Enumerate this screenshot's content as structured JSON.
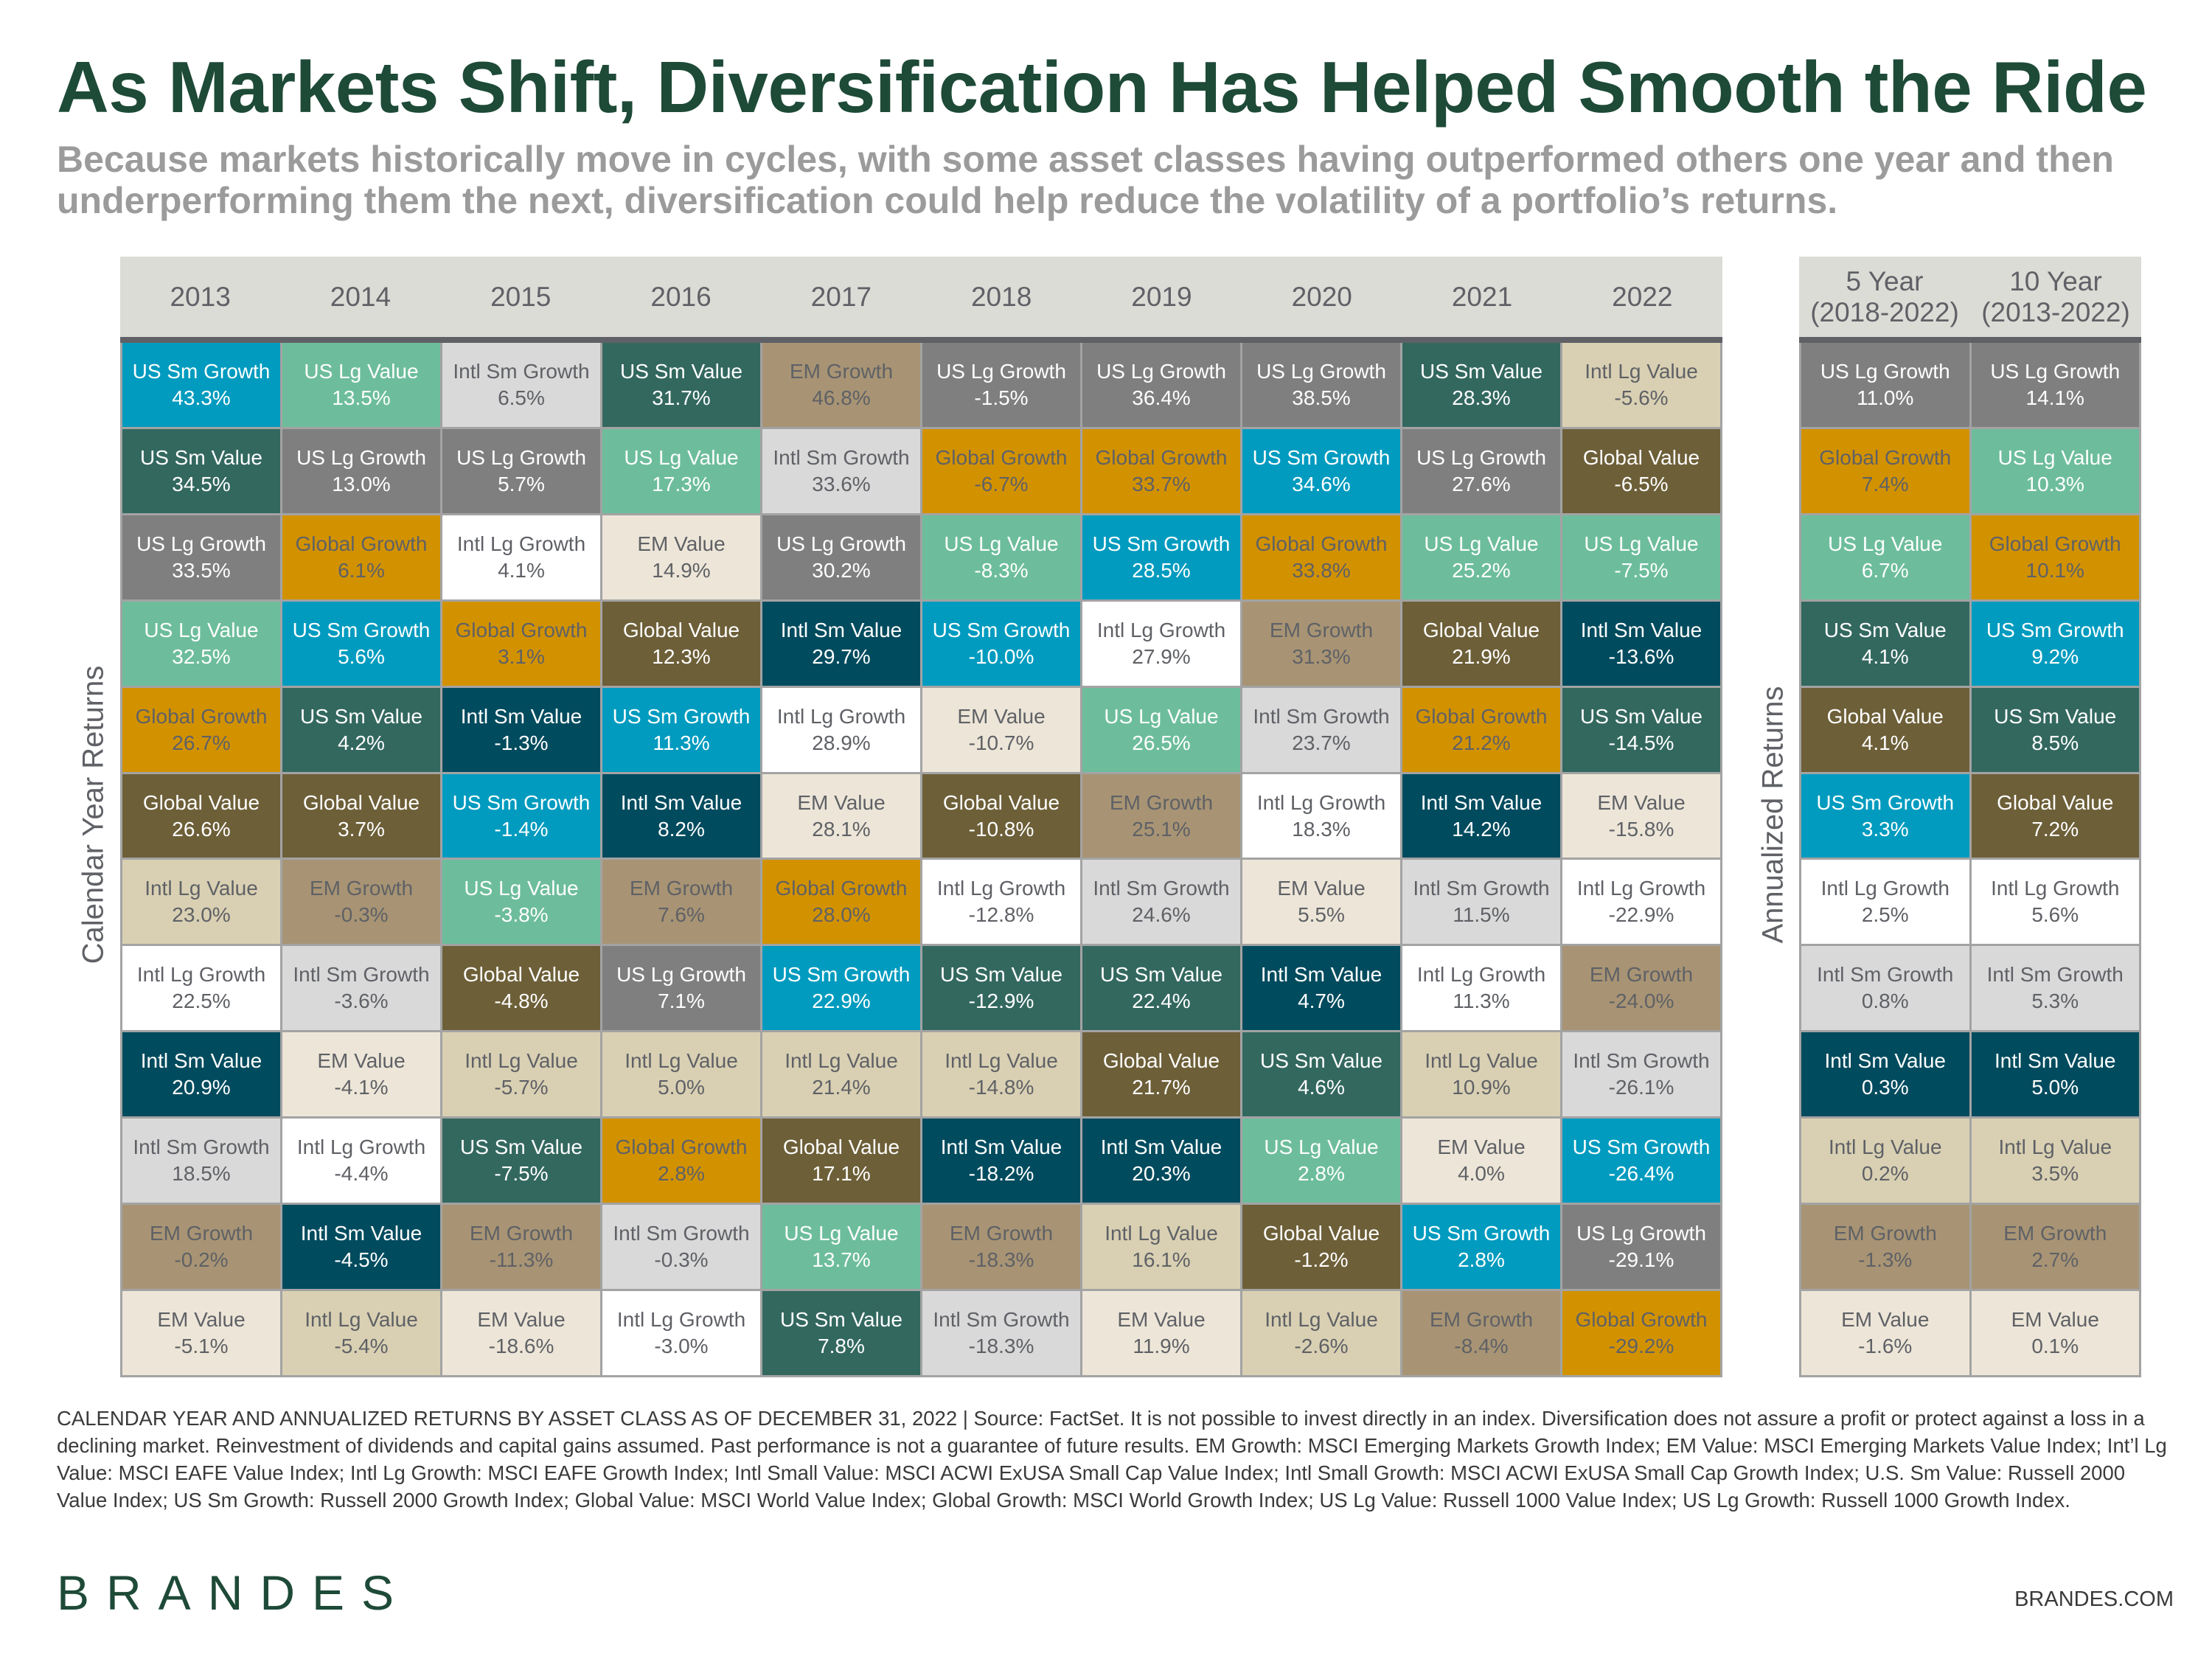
{
  "title": "As Markets Shift, Diversification Has Helped Smooth the Ride",
  "subtitle": "Because markets historically move in cycles, with some asset classes having outperformed others one year and then underperforming them the next, diversification could help reduce the volatility of a portfolio’s returns.",
  "chart_data": {
    "type": "table",
    "left_label": "Calendar Year Returns",
    "right_label": "Annualized Returns",
    "asset_colors": {
      "US Sm Growth": {
        "bg": "#009bbf",
        "fg": "#ffffff"
      },
      "US Lg Value": {
        "bg": "#6dbd9c",
        "fg": "#ffffff"
      },
      "Intl Sm Growth": {
        "bg": "#d9d9d9",
        "fg": "#5f6166"
      },
      "US Sm Value": {
        "bg": "#33685f",
        "fg": "#ffffff"
      },
      "EM Growth": {
        "bg": "#a89474",
        "fg": "#5f6166"
      },
      "US Lg Growth": {
        "bg": "#7f7f7f",
        "fg": "#ffffff"
      },
      "Global Growth": {
        "bg": "#d29200",
        "fg": "#5f6166"
      },
      "Intl Lg Growth": {
        "bg": "#ffffff",
        "fg": "#5f6166"
      },
      "EM Value": {
        "bg": "#ede6d8",
        "fg": "#5f6166"
      },
      "Global Value": {
        "bg": "#6d5f38",
        "fg": "#ffffff"
      },
      "Intl Sm Value": {
        "bg": "#004b5e",
        "fg": "#ffffff"
      },
      "Intl Lg Value": {
        "bg": "#d9d0b3",
        "fg": "#5f6166"
      }
    },
    "calendar_years": [
      {
        "header": "2013",
        "cells": [
          [
            "US Sm Growth",
            "43.3%"
          ],
          [
            "US Sm Value",
            "34.5%"
          ],
          [
            "US Lg Growth",
            "33.5%"
          ],
          [
            "US Lg Value",
            "32.5%"
          ],
          [
            "Global Growth",
            "26.7%"
          ],
          [
            "Global Value",
            "26.6%"
          ],
          [
            "Intl Lg Value",
            "23.0%"
          ],
          [
            "Intl Lg Growth",
            "22.5%"
          ],
          [
            "Intl Sm Value",
            "20.9%"
          ],
          [
            "Intl Sm Growth",
            "18.5%"
          ],
          [
            "EM Growth",
            "-0.2%"
          ],
          [
            "EM Value",
            "-5.1%"
          ]
        ]
      },
      {
        "header": "2014",
        "cells": [
          [
            "US Lg Value",
            "13.5%"
          ],
          [
            "US Lg Growth",
            "13.0%"
          ],
          [
            "Global Growth",
            "6.1%"
          ],
          [
            "US Sm Growth",
            "5.6%"
          ],
          [
            "US Sm Value",
            "4.2%"
          ],
          [
            "Global Value",
            "3.7%"
          ],
          [
            "EM Growth",
            "-0.3%"
          ],
          [
            "Intl Sm Growth",
            "-3.6%"
          ],
          [
            "EM Value",
            "-4.1%"
          ],
          [
            "Intl Lg Growth",
            "-4.4%"
          ],
          [
            "Intl Sm Value",
            "-4.5%"
          ],
          [
            "Intl Lg Value",
            "-5.4%"
          ]
        ]
      },
      {
        "header": "2015",
        "cells": [
          [
            "Intl Sm Growth",
            "6.5%"
          ],
          [
            "US Lg Growth",
            "5.7%"
          ],
          [
            "Intl Lg Growth",
            "4.1%"
          ],
          [
            "Global Growth",
            "3.1%"
          ],
          [
            "Intl Sm Value",
            "-1.3%"
          ],
          [
            "US Sm Growth",
            "-1.4%"
          ],
          [
            "US Lg Value",
            "-3.8%"
          ],
          [
            "Global Value",
            "-4.8%"
          ],
          [
            "Intl Lg Value",
            "-5.7%"
          ],
          [
            "US Sm Value",
            "-7.5%"
          ],
          [
            "EM Growth",
            "-11.3%"
          ],
          [
            "EM Value",
            "-18.6%"
          ]
        ]
      },
      {
        "header": "2016",
        "cells": [
          [
            "US Sm Value",
            "31.7%"
          ],
          [
            "US Lg Value",
            "17.3%"
          ],
          [
            "EM Value",
            "14.9%"
          ],
          [
            "Global Value",
            "12.3%"
          ],
          [
            "US Sm Growth",
            "11.3%"
          ],
          [
            "Intl Sm Value",
            "8.2%"
          ],
          [
            "EM Growth",
            "7.6%"
          ],
          [
            "US Lg Growth",
            "7.1%"
          ],
          [
            "Intl Lg Value",
            "5.0%"
          ],
          [
            "Global Growth",
            "2.8%"
          ],
          [
            "Intl Sm Growth",
            "-0.3%"
          ],
          [
            "Intl Lg Growth",
            "-3.0%"
          ]
        ]
      },
      {
        "header": "2017",
        "cells": [
          [
            "EM Growth",
            "46.8%"
          ],
          [
            "Intl Sm Growth",
            "33.6%"
          ],
          [
            "US Lg Growth",
            "30.2%"
          ],
          [
            "Intl Sm Value",
            "29.7%"
          ],
          [
            "Intl Lg Growth",
            "28.9%"
          ],
          [
            "EM Value",
            "28.1%"
          ],
          [
            "Global Growth",
            "28.0%"
          ],
          [
            "US Sm Growth",
            "22.9%"
          ],
          [
            "Intl Lg Value",
            "21.4%"
          ],
          [
            "Global Value",
            "17.1%"
          ],
          [
            "US Lg Value",
            "13.7%"
          ],
          [
            "US Sm Value",
            "7.8%"
          ]
        ]
      },
      {
        "header": "2018",
        "cells": [
          [
            "US Lg Growth",
            "-1.5%"
          ],
          [
            "Global Growth",
            "-6.7%"
          ],
          [
            "US Lg Value",
            "-8.3%"
          ],
          [
            "US Sm Growth",
            "-10.0%"
          ],
          [
            "EM Value",
            "-10.7%"
          ],
          [
            "Global Value",
            "-10.8%"
          ],
          [
            "Intl Lg Growth",
            "-12.8%"
          ],
          [
            "US Sm Value",
            "-12.9%"
          ],
          [
            "Intl Lg Value",
            "-14.8%"
          ],
          [
            "Intl Sm Value",
            "-18.2%"
          ],
          [
            "EM Growth",
            "-18.3%"
          ],
          [
            "Intl Sm Growth",
            "-18.3%"
          ]
        ]
      },
      {
        "header": "2019",
        "cells": [
          [
            "US Lg Growth",
            "36.4%"
          ],
          [
            "Global Growth",
            "33.7%"
          ],
          [
            "US Sm Growth",
            "28.5%"
          ],
          [
            "Intl Lg Growth",
            "27.9%"
          ],
          [
            "US Lg Value",
            "26.5%"
          ],
          [
            "EM Growth",
            "25.1%"
          ],
          [
            "Intl Sm Growth",
            "24.6%"
          ],
          [
            "US Sm Value",
            "22.4%"
          ],
          [
            "Global Value",
            "21.7%"
          ],
          [
            "Intl Sm Value",
            "20.3%"
          ],
          [
            "Intl Lg Value",
            "16.1%"
          ],
          [
            "EM Value",
            "11.9%"
          ]
        ]
      },
      {
        "header": "2020",
        "cells": [
          [
            "US Lg Growth",
            "38.5%"
          ],
          [
            "US Sm Growth",
            "34.6%"
          ],
          [
            "Global Growth",
            "33.8%"
          ],
          [
            "EM Growth",
            "31.3%"
          ],
          [
            "Intl Sm Growth",
            "23.7%"
          ],
          [
            "Intl Lg Growth",
            "18.3%"
          ],
          [
            "EM Value",
            "5.5%"
          ],
          [
            "Intl Sm Value",
            "4.7%"
          ],
          [
            "US Sm Value",
            "4.6%"
          ],
          [
            "US Lg Value",
            "2.8%"
          ],
          [
            "Global Value",
            "-1.2%"
          ],
          [
            "Intl Lg Value",
            "-2.6%"
          ]
        ]
      },
      {
        "header": "2021",
        "cells": [
          [
            "US Sm Value",
            "28.3%"
          ],
          [
            "US Lg Growth",
            "27.6%"
          ],
          [
            "US Lg Value",
            "25.2%"
          ],
          [
            "Global Value",
            "21.9%"
          ],
          [
            "Global Growth",
            "21.2%"
          ],
          [
            "Intl Sm Value",
            "14.2%"
          ],
          [
            "Intl Sm Growth",
            "11.5%"
          ],
          [
            "Intl Lg Growth",
            "11.3%"
          ],
          [
            "Intl Lg Value",
            "10.9%"
          ],
          [
            "EM Value",
            "4.0%"
          ],
          [
            "US Sm Growth",
            "2.8%"
          ],
          [
            "EM Growth",
            "-8.4%"
          ]
        ]
      },
      {
        "header": "2022",
        "cells": [
          [
            "Intl Lg Value",
            "-5.6%"
          ],
          [
            "Global Value",
            "-6.5%"
          ],
          [
            "US Lg Value",
            "-7.5%"
          ],
          [
            "Intl Sm Value",
            "-13.6%"
          ],
          [
            "US Sm Value",
            "-14.5%"
          ],
          [
            "EM Value",
            "-15.8%"
          ],
          [
            "Intl Lg Growth",
            "-22.9%"
          ],
          [
            "EM Growth",
            "-24.0%"
          ],
          [
            "Intl Sm Growth",
            "-26.1%"
          ],
          [
            "US Sm Growth",
            "-26.4%"
          ],
          [
            "US Lg Growth",
            "-29.1%"
          ],
          [
            "Global Growth",
            "-29.2%"
          ]
        ]
      }
    ],
    "annualized": [
      {
        "header": "5 Year (2018-2022)",
        "cells": [
          [
            "US Lg Growth",
            "11.0%"
          ],
          [
            "Global Growth",
            "7.4%"
          ],
          [
            "US Lg Value",
            "6.7%"
          ],
          [
            "US Sm Value",
            "4.1%"
          ],
          [
            "Global Value",
            "4.1%"
          ],
          [
            "US Sm Growth",
            "3.3%"
          ],
          [
            "Intl Lg Growth",
            "2.5%"
          ],
          [
            "Intl Sm Growth",
            "0.8%"
          ],
          [
            "Intl Sm Value",
            "0.3%"
          ],
          [
            "Intl Lg Value",
            "0.2%"
          ],
          [
            "EM Growth",
            "-1.3%"
          ],
          [
            "EM Value",
            "-1.6%"
          ]
        ]
      },
      {
        "header": "10 Year (2013-2022)",
        "cells": [
          [
            "US Lg Growth",
            "14.1%"
          ],
          [
            "US Lg Value",
            "10.3%"
          ],
          [
            "Global Growth",
            "10.1%"
          ],
          [
            "US Sm Growth",
            "9.2%"
          ],
          [
            "US Sm Value",
            "8.5%"
          ],
          [
            "Global Value",
            "7.2%"
          ],
          [
            "Intl Lg Growth",
            "5.6%"
          ],
          [
            "Intl Sm Growth",
            "5.3%"
          ],
          [
            "Intl Sm Value",
            "5.0%"
          ],
          [
            "Intl Lg Value",
            "3.5%"
          ],
          [
            "EM Growth",
            "2.7%"
          ],
          [
            "EM Value",
            "0.1%"
          ]
        ]
      }
    ]
  },
  "footnote": "CALENDAR YEAR AND ANNUALIZED RETURNS BY ASSET CLASS AS OF DECEMBER 31, 2022 | Source: FactSet. It is not possible to invest directly in an index. Diversification does not assure a profit or protect against a loss in a declining market. Reinvestment of dividends and capital gains assumed. Past performance is not a guarantee of future results. EM Growth: MSCI Emerging Markets Growth Index; EM Value: MSCI Emerging Markets Value Index; Int’l Lg Value: MSCI EAFE Value Index; Intl Lg Growth: MSCI EAFE Growth Index; Intl Small Value: MSCI ACWI ExUSA Small Cap Value Index; Intl Small Growth: MSCI ACWI ExUSA Small Cap Growth Index; U.S. Sm Value: Russell 2000 Value Index; US Sm Growth: Russell 2000 Growth Index; Global Value: MSCI World Value  Index; Global Growth: MSCI  World Growth Index; US Lg Value: Russell 1000 Value Index; US Lg Growth: Russell 1000 Growth Index.",
  "logo": "BRANDES",
  "website": "BRANDES.COM"
}
